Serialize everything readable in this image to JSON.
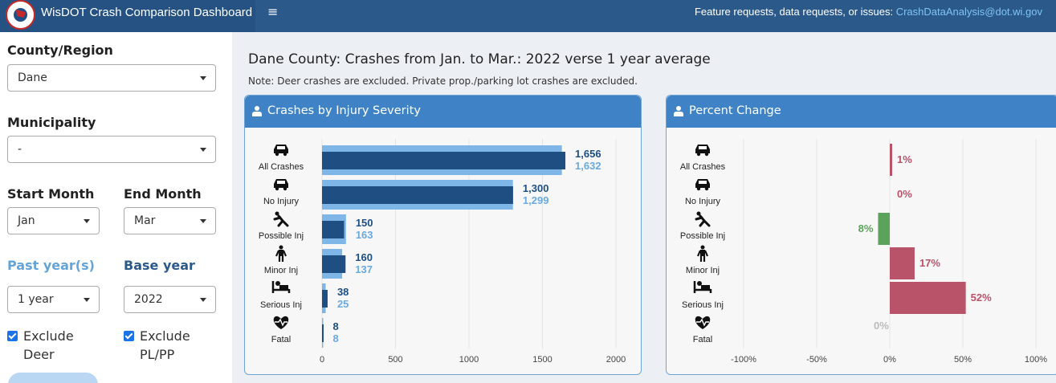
{
  "header": {
    "title": "WisDOT Crash Comparison Dashboard",
    "menu_icon": "≡",
    "feedback_text": "Feature requests, data requests, or issues: ",
    "feedback_email": "CrashDataAnalysis@dot.wi.gov"
  },
  "sidebar": {
    "county_label": "County/Region",
    "county_value": "Dane",
    "municipality_label": "Municipality",
    "municipality_value": "-",
    "start_month_label": "Start Month",
    "start_month_value": "Jan",
    "end_month_label": "End Month",
    "end_month_value": "Mar",
    "past_years_label": "Past year(s)",
    "past_years_value": "1 year",
    "base_year_label": "Base year",
    "base_year_value": "2022",
    "exclude_deer_label": "Exclude Deer",
    "exclude_deer_checked": true,
    "exclude_plpp_label": "Exclude PL/PP",
    "exclude_plpp_checked": true
  },
  "main": {
    "title": "Dane County: Crashes from Jan. to Mar.: 2022 verse 1 year average",
    "note": "Note: Deer crashes are excluded. Private prop./parking lot crashes are excluded."
  },
  "panels": {
    "severity_title": "Crashes by Injury Severity",
    "percent_title": "Percent Change"
  },
  "colors": {
    "current": "#1f4e83",
    "baseline": "#7eb6e8",
    "increase": "#b9536a",
    "decrease": "#5ba35b",
    "zero": "#bbbbbb"
  },
  "chart_data": [
    {
      "type": "bar",
      "orientation": "horizontal",
      "title": "Crashes by Injury Severity",
      "categories": [
        "All Crashes",
        "No Injury",
        "Possible Inj",
        "Minor Inj",
        "Serious Inj",
        "Fatal"
      ],
      "category_icons": [
        "car-icon",
        "car-icon",
        "person-falling-icon",
        "person-standing-icon",
        "hospital-bed-icon",
        "heart-pulse-icon"
      ],
      "series": [
        {
          "values": [
            1656,
            1300,
            150,
            160,
            38,
            8
          ]
        },
        {
          "values": [
            1632,
            1299,
            163,
            137,
            25,
            8
          ]
        }
      ],
      "labels_current": [
        "1,656",
        "1,300",
        "150",
        "160",
        "38",
        "8"
      ],
      "labels_base": [
        "1,632",
        "1,299",
        "163",
        "137",
        "25",
        "8"
      ],
      "xlim": [
        0,
        2000
      ],
      "xticks": [
        0,
        500,
        1000,
        1500,
        2000
      ],
      "grid": true
    },
    {
      "type": "bar",
      "orientation": "horizontal",
      "title": "Percent Change",
      "categories": [
        "All Crashes",
        "No Injury",
        "Possible Inj",
        "Minor Inj",
        "Serious Inj",
        "Fatal"
      ],
      "values": [
        1,
        0,
        -8,
        17,
        52,
        0
      ],
      "labels": [
        "1%",
        "0%",
        "8%",
        "17%",
        "52%",
        "0%"
      ],
      "xlim": [
        -100,
        100
      ],
      "xticks": [
        "-100%",
        "-50%",
        "0%",
        "50%",
        "100%"
      ],
      "grid": true
    }
  ]
}
